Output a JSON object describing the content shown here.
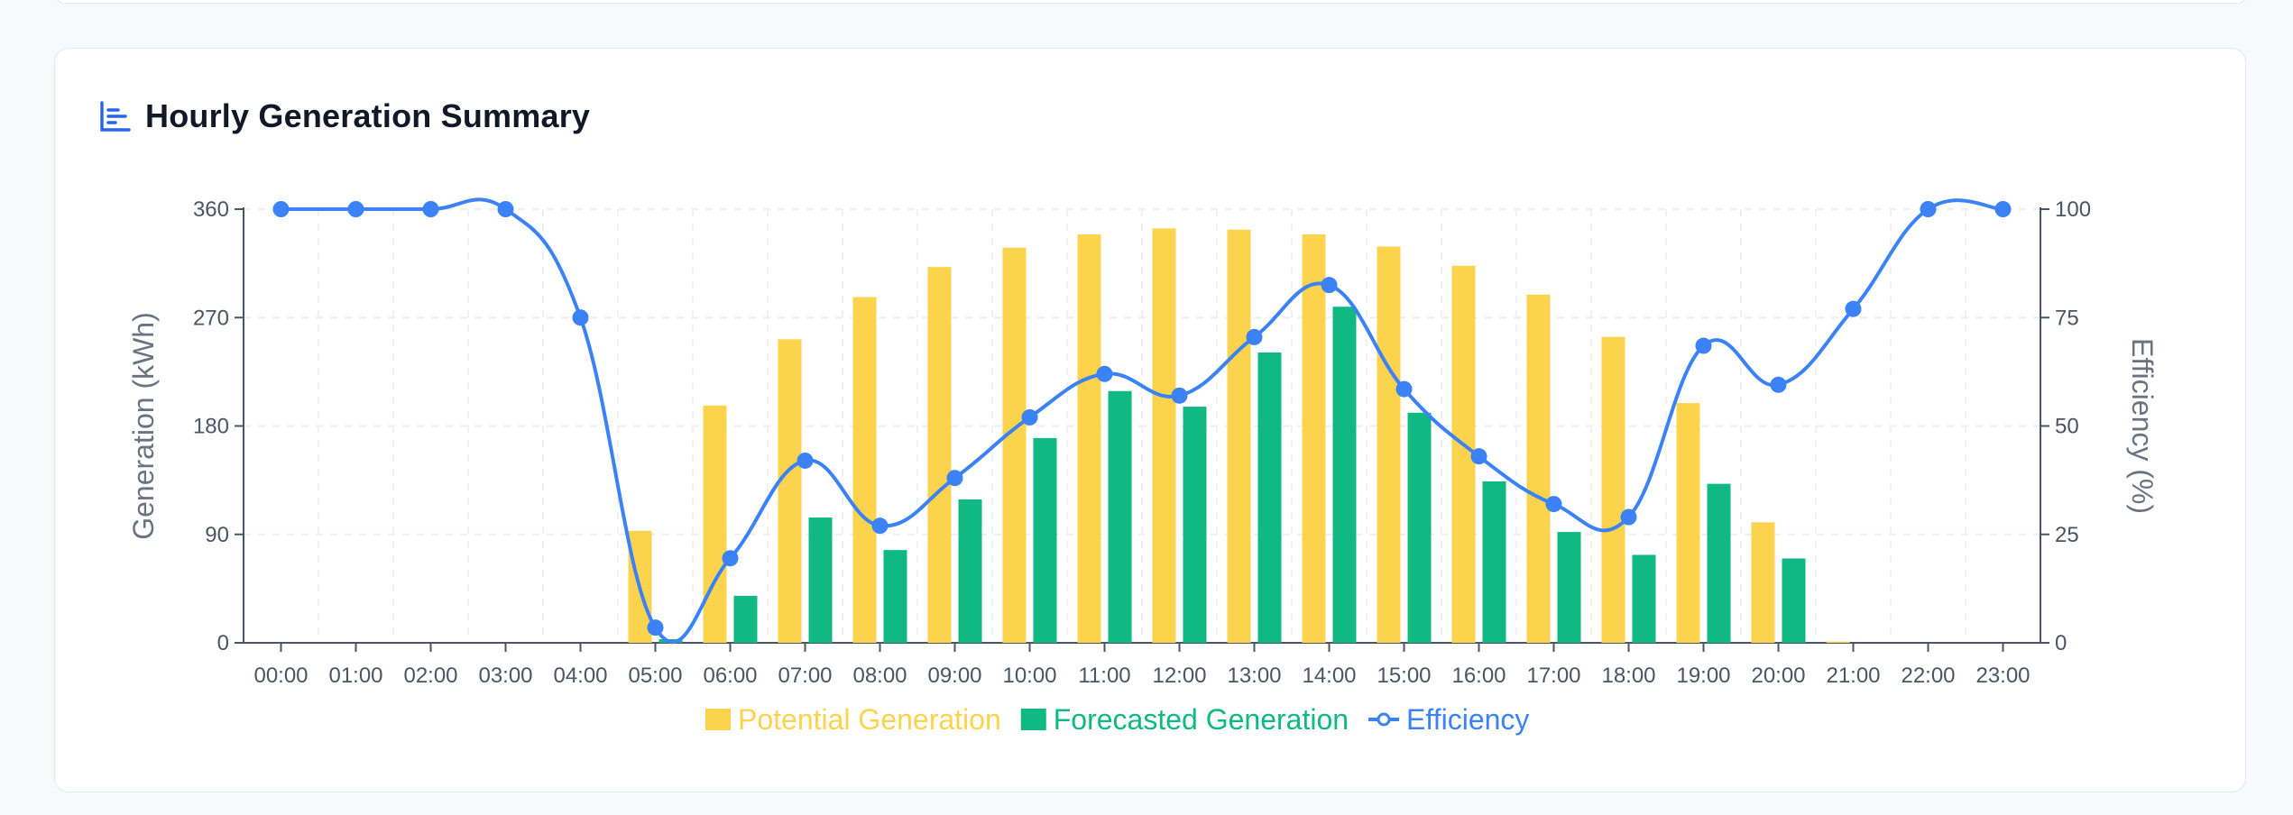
{
  "card": {
    "title": "Hourly Generation Summary",
    "icon": "bar-chart-icon"
  },
  "colors": {
    "potential": "#fcd34d",
    "forecasted": "#10b981",
    "efficiency": "#3b82f6",
    "icon": "#2563eb"
  },
  "chart_data": {
    "type": "bar",
    "categories": [
      "00:00",
      "01:00",
      "02:00",
      "03:00",
      "04:00",
      "05:00",
      "06:00",
      "07:00",
      "08:00",
      "09:00",
      "10:00",
      "11:00",
      "12:00",
      "13:00",
      "14:00",
      "15:00",
      "16:00",
      "17:00",
      "18:00",
      "19:00",
      "20:00",
      "21:00",
      "22:00",
      "23:00"
    ],
    "series": [
      {
        "name": "Potential Generation",
        "type": "bar",
        "axis": "left",
        "values": [
          0,
          0,
          0,
          0,
          0,
          93,
          197,
          252,
          287,
          312,
          328,
          339,
          344,
          343,
          339,
          329,
          313,
          289,
          254,
          199,
          100,
          1,
          0,
          0
        ]
      },
      {
        "name": "Forecasted Generation",
        "type": "bar",
        "axis": "left",
        "values": [
          0,
          0,
          0,
          0,
          0,
          3,
          39,
          104,
          77,
          119,
          170,
          209,
          196,
          241,
          279,
          191,
          134,
          92,
          73,
          132,
          70,
          0,
          0,
          0
        ]
      },
      {
        "name": "Efficiency",
        "type": "line",
        "axis": "right",
        "values": [
          100,
          100,
          100,
          100,
          75,
          3.5,
          19.5,
          42,
          27,
          38,
          52,
          62,
          57,
          70.5,
          82.5,
          58.5,
          43,
          32,
          29,
          68.5,
          59.5,
          77,
          100,
          100
        ]
      }
    ],
    "ylabel": "Generation (kWh)",
    "y2label": "Efficiency (%)",
    "ylim": [
      0,
      360
    ],
    "y2lim": [
      0,
      100
    ],
    "yticks": [
      0,
      90,
      180,
      270,
      360
    ],
    "y2ticks": [
      0,
      25,
      50,
      75,
      100
    ],
    "grid": true,
    "legend_position": "bottom"
  }
}
